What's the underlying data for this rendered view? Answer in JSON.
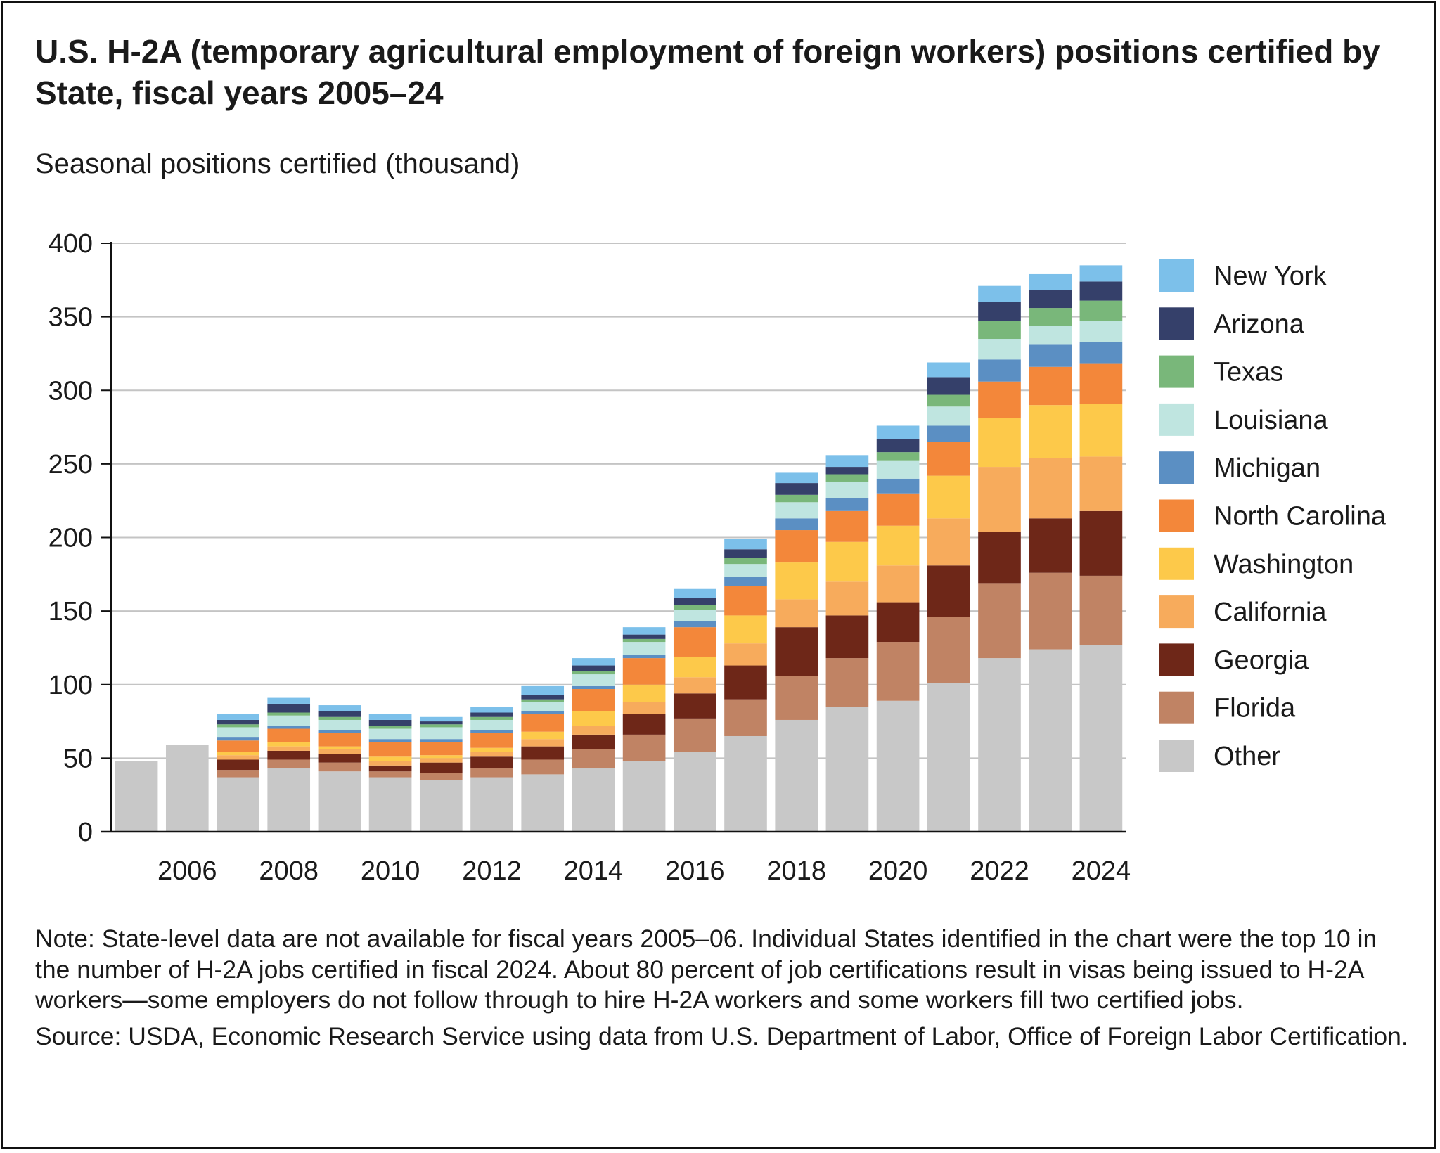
{
  "title": "U.S. H-2A (temporary agricultural employment of foreign workers) positions certified by State, fiscal years 2005–24",
  "unit_label": "Seasonal positions certified (thousand)",
  "note": "Note: State-level data are not available for fiscal years 2005–06. Individual States identified in the chart were the top 10 in the number of H-2A jobs certified in fiscal 2024. About 80 percent of job certifications result in visas being issued to H-2A workers—some employers do not follow through to hire H-2A workers and some workers fill two certified jobs.",
  "source": "Source: USDA, Economic Research Service using data from U.S. Department of Labor, Office of Foreign Labor Certification.",
  "chart_data": {
    "type": "bar",
    "stacked": true,
    "x": [
      2005,
      2006,
      2007,
      2008,
      2009,
      2010,
      2011,
      2012,
      2013,
      2014,
      2015,
      2016,
      2017,
      2018,
      2019,
      2020,
      2021,
      2022,
      2023,
      2024
    ],
    "x_tick_labels": [
      "2006",
      "2008",
      "2010",
      "2012",
      "2014",
      "2016",
      "2018",
      "2020",
      "2022",
      "2024"
    ],
    "ylim": [
      0,
      400
    ],
    "y_ticks": [
      0,
      50,
      100,
      150,
      200,
      250,
      300,
      350,
      400
    ],
    "grid": "horizontal",
    "legend_position": "right",
    "series": [
      {
        "name": "Other",
        "color": "#c8c8c8",
        "values": [
          48,
          59,
          37,
          43,
          41,
          37,
          35,
          37,
          39,
          43,
          48,
          54,
          65,
          76,
          85,
          89,
          101,
          118,
          124,
          127
        ]
      },
      {
        "name": "Florida",
        "color": "#c08364",
        "values": [
          null,
          null,
          5,
          6,
          6,
          4,
          5,
          6,
          10,
          13,
          18,
          23,
          25,
          30,
          33,
          40,
          45,
          51,
          52,
          47
        ]
      },
      {
        "name": "Georgia",
        "color": "#6e2718",
        "values": [
          null,
          null,
          7,
          6,
          6,
          4,
          7,
          8,
          9,
          10,
          14,
          17,
          23,
          33,
          29,
          27,
          35,
          35,
          37,
          44
        ]
      },
      {
        "name": "California",
        "color": "#f7ab5c",
        "values": [
          null,
          null,
          3,
          3,
          3,
          3,
          3,
          3,
          5,
          6,
          8,
          11,
          15,
          19,
          23,
          25,
          32,
          44,
          41,
          37
        ]
      },
      {
        "name": "Washington",
        "color": "#fdc94a",
        "values": [
          null,
          null,
          2,
          3,
          2,
          3,
          2,
          3,
          5,
          10,
          12,
          14,
          19,
          25,
          27,
          27,
          29,
          33,
          36,
          36
        ]
      },
      {
        "name": "North Carolina",
        "color": "#f3873a",
        "values": [
          null,
          null,
          8,
          9,
          9,
          10,
          9,
          10,
          12,
          15,
          18,
          20,
          20,
          22,
          21,
          22,
          23,
          25,
          26,
          27
        ]
      },
      {
        "name": "Michigan",
        "color": "#5b8fc3",
        "values": [
          null,
          null,
          2,
          2,
          2,
          2,
          2,
          2,
          2,
          2,
          2,
          4,
          6,
          8,
          9,
          10,
          11,
          15,
          15,
          15
        ]
      },
      {
        "name": "Louisiana",
        "color": "#bfe5e0",
        "values": [
          null,
          null,
          7,
          7,
          7,
          7,
          8,
          7,
          6,
          8,
          9,
          8,
          9,
          11,
          11,
          12,
          13,
          14,
          13,
          14
        ]
      },
      {
        "name": "Texas",
        "color": "#79b77a",
        "values": [
          null,
          null,
          2,
          2,
          2,
          2,
          2,
          2,
          2,
          2,
          2,
          3,
          4,
          5,
          5,
          6,
          8,
          12,
          12,
          14
        ]
      },
      {
        "name": "Arizona",
        "color": "#35406a",
        "values": [
          null,
          null,
          3,
          6,
          4,
          4,
          2,
          3,
          3,
          4,
          3,
          5,
          6,
          8,
          5,
          9,
          12,
          13,
          12,
          13
        ]
      },
      {
        "name": "New York",
        "color": "#7cc0ea",
        "values": [
          null,
          null,
          4,
          4,
          4,
          4,
          3,
          4,
          6,
          5,
          5,
          6,
          7,
          7,
          8,
          9,
          10,
          11,
          11,
          11
        ]
      }
    ],
    "legend_order": [
      "New York",
      "Arizona",
      "Texas",
      "Louisiana",
      "Michigan",
      "North Carolina",
      "Washington",
      "California",
      "Georgia",
      "Florida",
      "Other"
    ]
  }
}
